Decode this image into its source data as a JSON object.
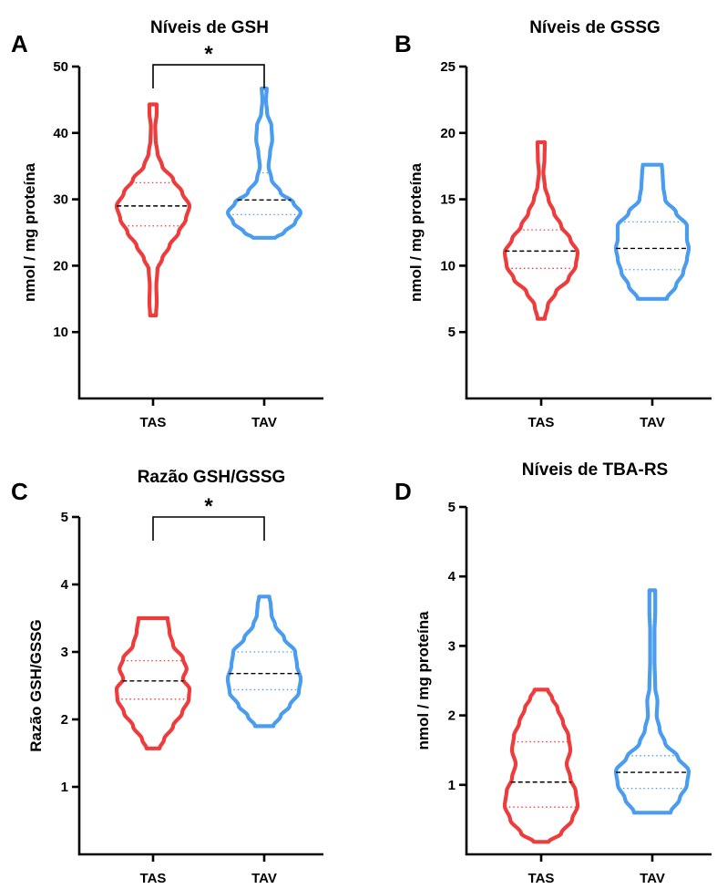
{
  "figure": {
    "colors": {
      "TAS": "#ee3b3b",
      "TAV": "#4a9cef",
      "median": "#000000"
    }
  },
  "chart_data": [
    {
      "type": "violin",
      "panel": "A",
      "title": "Níveis de GSH",
      "ylabel": "nmol / mg proteína",
      "ylim": [
        0,
        50
      ],
      "yticks": [
        10,
        20,
        30,
        40,
        50
      ],
      "categories": [
        "TAS",
        "TAV"
      ],
      "significance": {
        "pair": [
          "TAS",
          "TAV"
        ],
        "label": "*"
      },
      "series": [
        {
          "category": "TAS",
          "min": 12.5,
          "max": 44.3,
          "q1": 26.0,
          "median": 29.0,
          "q3": 32.5,
          "profile": [
            [
              12.5,
              0.08
            ],
            [
              14.5,
              0.1
            ],
            [
              17,
              0.09
            ],
            [
              19.5,
              0.12
            ],
            [
              21,
              0.25
            ],
            [
              23,
              0.45
            ],
            [
              25,
              0.7
            ],
            [
              27,
              0.9
            ],
            [
              29,
              1.0
            ],
            [
              31,
              0.8
            ],
            [
              33,
              0.55
            ],
            [
              35,
              0.25
            ],
            [
              37,
              0.12
            ],
            [
              39,
              0.07
            ],
            [
              41,
              0.06
            ],
            [
              43,
              0.1
            ],
            [
              44.3,
              0.1
            ]
          ]
        },
        {
          "category": "TAV",
          "min": 24.2,
          "max": 46.7,
          "q1": 27.7,
          "median": 29.9,
          "q3": 34.0,
          "profile": [
            [
              24.2,
              0.3
            ],
            [
              25,
              0.55
            ],
            [
              26.5,
              0.85
            ],
            [
              28,
              1.0
            ],
            [
              29.5,
              0.8
            ],
            [
              31,
              0.45
            ],
            [
              33,
              0.2
            ],
            [
              35,
              0.12
            ],
            [
              37,
              0.16
            ],
            [
              39,
              0.22
            ],
            [
              41,
              0.2
            ],
            [
              43,
              0.08
            ],
            [
              45,
              0.05
            ],
            [
              46.7,
              0.07
            ]
          ]
        }
      ]
    },
    {
      "type": "violin",
      "panel": "B",
      "title": "Níveis de GSSG",
      "ylabel": "nmol / mg proteína",
      "ylim": [
        0,
        25
      ],
      "yticks": [
        5,
        10,
        15,
        20,
        25
      ],
      "categories": [
        "TAS",
        "TAV"
      ],
      "series": [
        {
          "category": "TAS",
          "min": 6.0,
          "max": 19.3,
          "q1": 9.8,
          "median": 11.1,
          "q3": 12.7,
          "profile": [
            [
              6.0,
              0.1
            ],
            [
              7,
              0.18
            ],
            [
              8,
              0.4
            ],
            [
              9,
              0.75
            ],
            [
              10,
              0.95
            ],
            [
              11,
              1.0
            ],
            [
              12,
              0.8
            ],
            [
              13,
              0.55
            ],
            [
              14,
              0.35
            ],
            [
              15,
              0.2
            ],
            [
              16,
              0.1
            ],
            [
              17,
              0.06
            ],
            [
              18,
              0.09
            ],
            [
              19.3,
              0.1
            ]
          ]
        },
        {
          "category": "TAV",
          "min": 7.5,
          "max": 17.6,
          "q1": 9.7,
          "median": 11.3,
          "q3": 13.3,
          "profile": [
            [
              7.5,
              0.4
            ],
            [
              8.5,
              0.65
            ],
            [
              9.5,
              0.85
            ],
            [
              10.5,
              0.95
            ],
            [
              11.3,
              1.0
            ],
            [
              12,
              0.95
            ],
            [
              13,
              0.95
            ],
            [
              14,
              0.65
            ],
            [
              15,
              0.35
            ],
            [
              16,
              0.3
            ],
            [
              17,
              0.28
            ],
            [
              17.6,
              0.26
            ]
          ]
        }
      ]
    },
    {
      "type": "violin",
      "panel": "C",
      "title": "Razão GSH/GSSG",
      "ylabel": "Razão GSH/GSSG",
      "ylim": [
        0,
        5
      ],
      "yticks": [
        1,
        2,
        3,
        4,
        5
      ],
      "categories": [
        "TAS",
        "TAV"
      ],
      "significance": {
        "pair": [
          "TAS",
          "TAV"
        ],
        "label": "*"
      },
      "series": [
        {
          "category": "TAS",
          "min": 1.57,
          "max": 3.5,
          "q1": 2.3,
          "median": 2.57,
          "q3": 2.87,
          "profile": [
            [
              1.57,
              0.18
            ],
            [
              1.7,
              0.3
            ],
            [
              1.9,
              0.55
            ],
            [
              2.1,
              0.8
            ],
            [
              2.3,
              0.98
            ],
            [
              2.45,
              1.0
            ],
            [
              2.6,
              0.82
            ],
            [
              2.75,
              0.92
            ],
            [
              2.9,
              0.82
            ],
            [
              3.1,
              0.55
            ],
            [
              3.3,
              0.45
            ],
            [
              3.5,
              0.4
            ]
          ]
        },
        {
          "category": "TAV",
          "min": 1.9,
          "max": 3.82,
          "q1": 2.44,
          "median": 2.68,
          "q3": 3.0,
          "profile": [
            [
              1.9,
              0.25
            ],
            [
              2.05,
              0.45
            ],
            [
              2.2,
              0.7
            ],
            [
              2.4,
              0.95
            ],
            [
              2.6,
              1.0
            ],
            [
              2.8,
              0.9
            ],
            [
              3.0,
              0.85
            ],
            [
              3.2,
              0.55
            ],
            [
              3.4,
              0.3
            ],
            [
              3.55,
              0.2
            ],
            [
              3.7,
              0.18
            ],
            [
              3.82,
              0.14
            ]
          ]
        }
      ]
    },
    {
      "type": "violin",
      "panel": "D",
      "title": "Níveis de TBA-RS",
      "ylabel": "nmol / mg proteína",
      "ylim": [
        0,
        5
      ],
      "yticks": [
        1,
        2,
        3,
        4,
        5
      ],
      "categories": [
        "TAS",
        "TAV"
      ],
      "series": [
        {
          "category": "TAS",
          "min": 0.18,
          "max": 2.37,
          "q1": 0.68,
          "median": 1.04,
          "q3": 1.62,
          "profile": [
            [
              0.18,
              0.2
            ],
            [
              0.3,
              0.55
            ],
            [
              0.5,
              0.85
            ],
            [
              0.7,
              1.0
            ],
            [
              0.9,
              0.95
            ],
            [
              1.1,
              0.8
            ],
            [
              1.3,
              0.7
            ],
            [
              1.5,
              0.8
            ],
            [
              1.7,
              0.75
            ],
            [
              1.9,
              0.6
            ],
            [
              2.1,
              0.45
            ],
            [
              2.25,
              0.3
            ],
            [
              2.37,
              0.18
            ]
          ]
        },
        {
          "category": "TAV",
          "min": 0.6,
          "max": 3.8,
          "q1": 0.95,
          "median": 1.18,
          "q3": 1.42,
          "profile": [
            [
              0.6,
              0.5
            ],
            [
              0.8,
              0.75
            ],
            [
              1.0,
              0.95
            ],
            [
              1.2,
              1.0
            ],
            [
              1.4,
              0.7
            ],
            [
              1.6,
              0.35
            ],
            [
              1.8,
              0.2
            ],
            [
              2.0,
              0.12
            ],
            [
              2.2,
              0.14
            ],
            [
              2.4,
              0.08
            ],
            [
              2.8,
              0.06
            ],
            [
              3.2,
              0.06
            ],
            [
              3.5,
              0.08
            ],
            [
              3.8,
              0.08
            ]
          ]
        }
      ]
    }
  ]
}
